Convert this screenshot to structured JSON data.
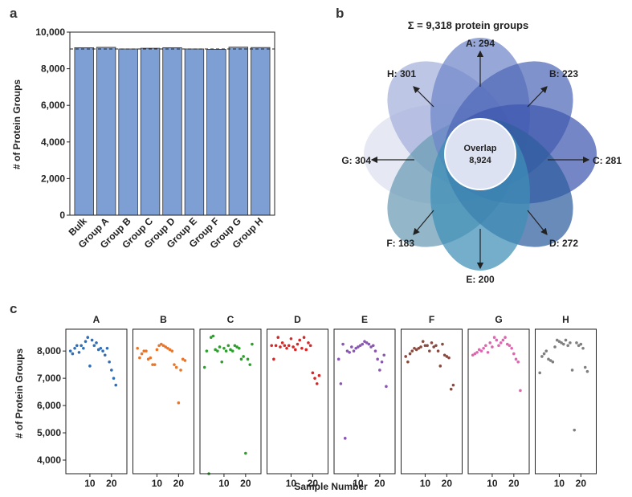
{
  "panels": {
    "a": "a",
    "b": "b",
    "c": "c"
  },
  "chart_data": [
    {
      "type": "bar",
      "panel": "a",
      "ylabel": "# of Protein Groups",
      "ylim": [
        0,
        10000
      ],
      "yticks": [
        0,
        2000,
        4000,
        6000,
        8000,
        10000
      ],
      "ytick_labels": [
        "0",
        "2,000",
        "4,000",
        "6,000",
        "8,000",
        "10,000"
      ],
      "categories": [
        "Bulk",
        "Group A",
        "Group B",
        "Group C",
        "Group D",
        "Group E",
        "Group F",
        "Group G",
        "Group H"
      ],
      "values": [
        9150,
        9170,
        9080,
        9120,
        9150,
        9080,
        9060,
        9180,
        9160
      ],
      "reference_line": 9080,
      "bar_color": "#7d9fd4"
    },
    {
      "type": "venn",
      "panel": "b",
      "title": "Σ = 9,318 protein groups",
      "overlap_label": "Overlap",
      "overlap_value": "8,924",
      "sets": [
        {
          "label": "A: 294",
          "color": "#6f86c9"
        },
        {
          "label": "B: 223",
          "color": "#4f68b8"
        },
        {
          "label": "C: 281",
          "color": "#3f58ae"
        },
        {
          "label": "D: 272",
          "color": "#2f5e9e"
        },
        {
          "label": "E: 200",
          "color": "#3e8fb7"
        },
        {
          "label": "F: 183",
          "color": "#6a9bb4"
        },
        {
          "label": "G: 304",
          "color": "#dde1f0"
        },
        {
          "label": "H: 301",
          "color": "#a5b0db"
        }
      ]
    },
    {
      "type": "scatter",
      "panel": "c",
      "xlabel": "Sample Number",
      "ylabel": "# of Protein Groups",
      "ylim": [
        3500,
        8800
      ],
      "yticks": [
        4000,
        5000,
        6000,
        7000,
        8000
      ],
      "ytick_labels": [
        "4,000",
        "5,000",
        "6,000",
        "7,000",
        "8,000"
      ],
      "xlim": [
        0,
        26
      ],
      "xticks": [
        10,
        20
      ],
      "xtick_labels": [
        "10",
        "20"
      ],
      "series": [
        {
          "name": "A",
          "color": "#2f6db5",
          "values": [
            8000,
            7900,
            8100,
            8200,
            7950,
            8200,
            8100,
            8350,
            8500,
            7450,
            8400,
            8200,
            8300,
            8050,
            8100,
            8000,
            7850,
            8100,
            7600,
            7300,
            7000,
            6750
          ]
        },
        {
          "name": "B",
          "color": "#e8752a",
          "values": [
            8100,
            7750,
            7900,
            8000,
            8000,
            7700,
            7750,
            7500,
            7500,
            8050,
            8200,
            8250,
            8200,
            8150,
            8100,
            8050,
            8000,
            7500,
            7400,
            6100,
            7300,
            7700,
            7650
          ]
        },
        {
          "name": "C",
          "color": "#2ca02c",
          "values": [
            7400,
            8000,
            3500,
            8500,
            8550,
            8050,
            8000,
            8150,
            7600,
            8100,
            8000,
            8200,
            8050,
            8000,
            8200,
            8150,
            8100,
            7700,
            7800,
            4250,
            7700,
            7500,
            8250
          ]
        },
        {
          "name": "D",
          "color": "#d62728",
          "values": [
            8200,
            7700,
            8200,
            8500,
            8150,
            8300,
            8200,
            8100,
            8200,
            8450,
            8150,
            8050,
            8250,
            8400,
            8100,
            8500,
            8050,
            8300,
            8200,
            7200,
            7000,
            6800,
            7100
          ]
        },
        {
          "name": "E",
          "color": "#8a56b3",
          "values": [
            7700,
            6800,
            8250,
            4800,
            8000,
            7950,
            8150,
            8000,
            8100,
            8150,
            8200,
            8250,
            8350,
            8300,
            8250,
            8150,
            8200,
            8000,
            7700,
            7300,
            7600,
            7850,
            6700
          ]
        },
        {
          "name": "F",
          "color": "#8b4a3f",
          "values": [
            7800,
            7600,
            7900,
            8000,
            8100,
            8050,
            8100,
            8150,
            8350,
            8200,
            8200,
            8000,
            8300,
            8150,
            8200,
            8000,
            7450,
            8250,
            7850,
            7800,
            7750,
            6600,
            6750
          ]
        },
        {
          "name": "G",
          "color": "#e065b0",
          "values": [
            7850,
            7900,
            7950,
            8050,
            8000,
            8100,
            8200,
            7950,
            8300,
            8150,
            8500,
            8400,
            8200,
            8300,
            8400,
            8500,
            8250,
            8200,
            8100,
            7900,
            7700,
            7600,
            6550
          ]
        },
        {
          "name": "H",
          "color": "#7f7f7f",
          "values": [
            7200,
            7800,
            7900,
            8000,
            7700,
            7650,
            7600,
            8150,
            8400,
            8350,
            8300,
            8250,
            8400,
            8200,
            8300,
            7300,
            5100,
            8300,
            8200,
            8250,
            8100,
            7400,
            7250
          ]
        }
      ]
    }
  ]
}
